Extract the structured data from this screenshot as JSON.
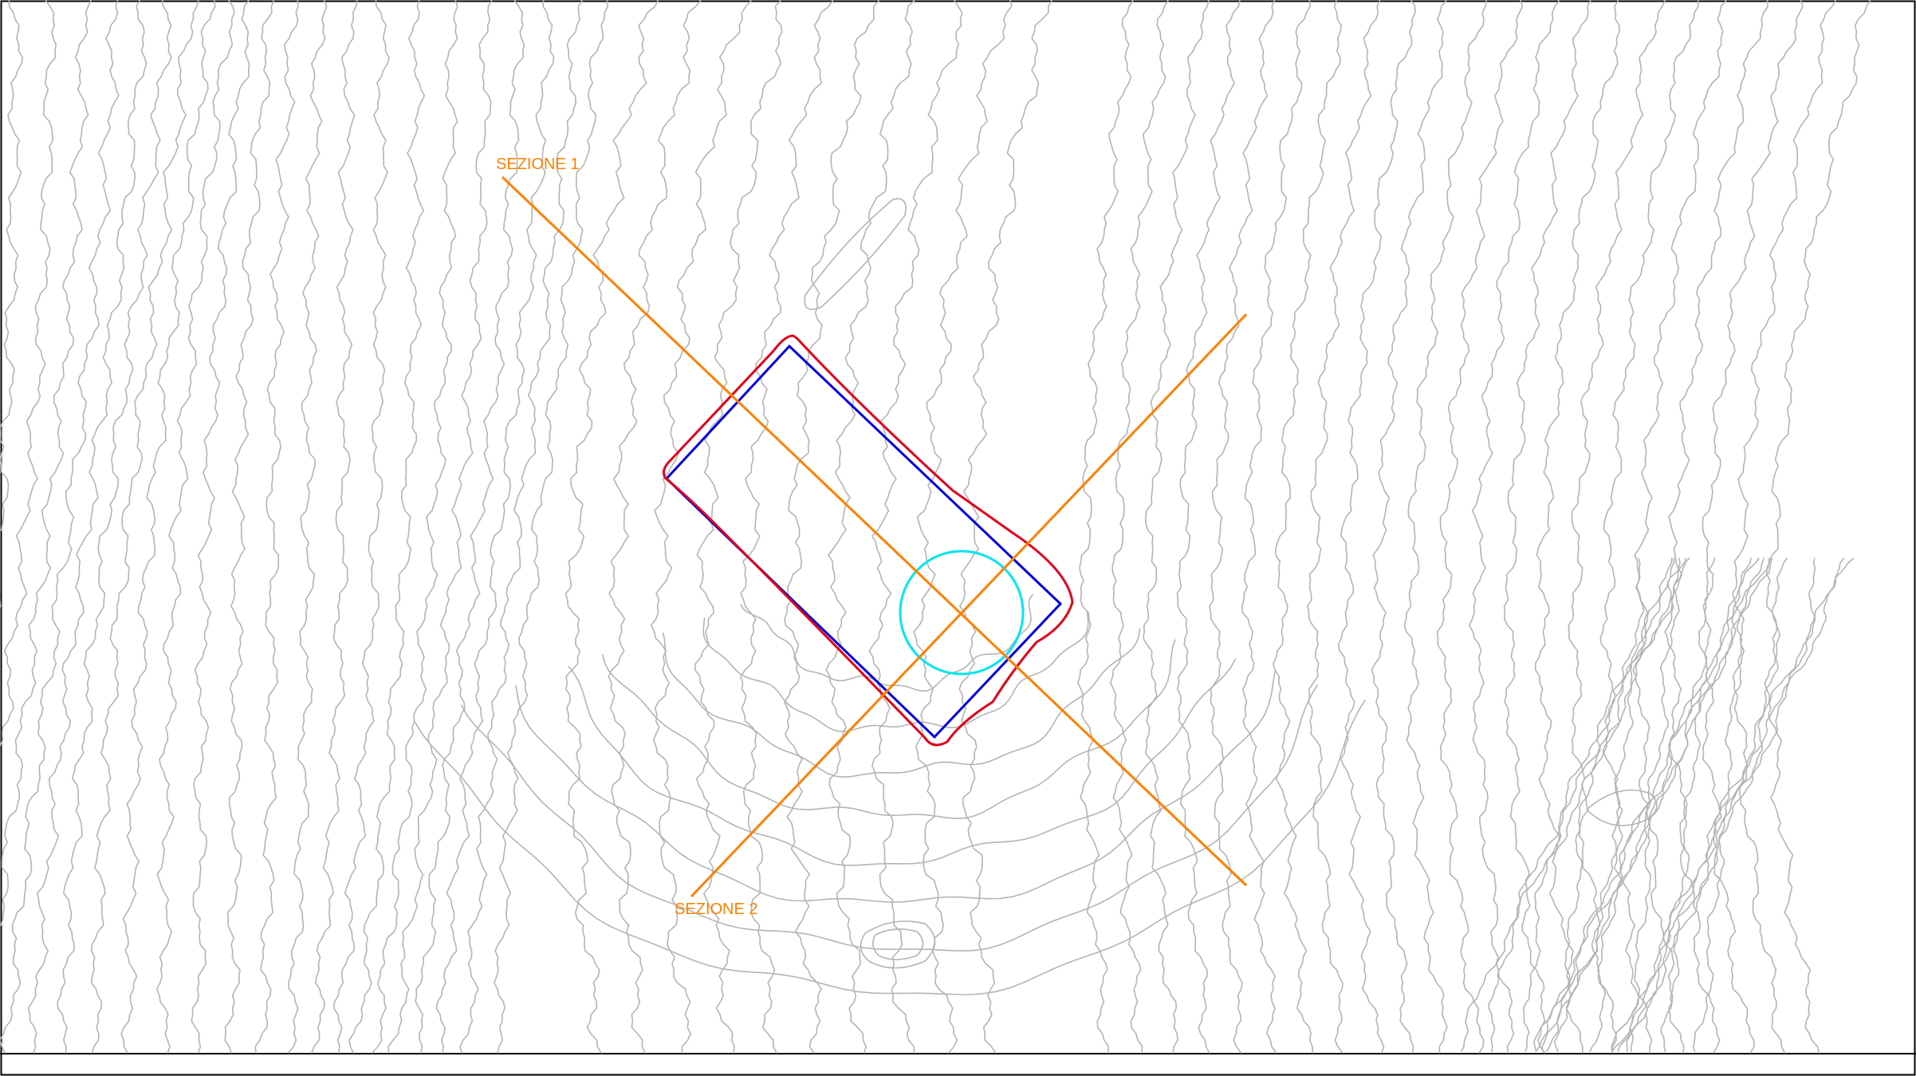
{
  "map": {
    "sections": [
      {
        "id": "sezione-1",
        "label": "SEZIONE 1"
      },
      {
        "id": "sezione-2",
        "label": "SEZIONE 2"
      }
    ],
    "colors": {
      "contour": "#b4b4b4",
      "section_line": "#ff8000",
      "section_label": "#ff8000",
      "rect_outline_blue": "#0000dd",
      "rect_outline_red": "#e0001a",
      "circle": "#00e5ee",
      "frame": "#000000"
    }
  }
}
